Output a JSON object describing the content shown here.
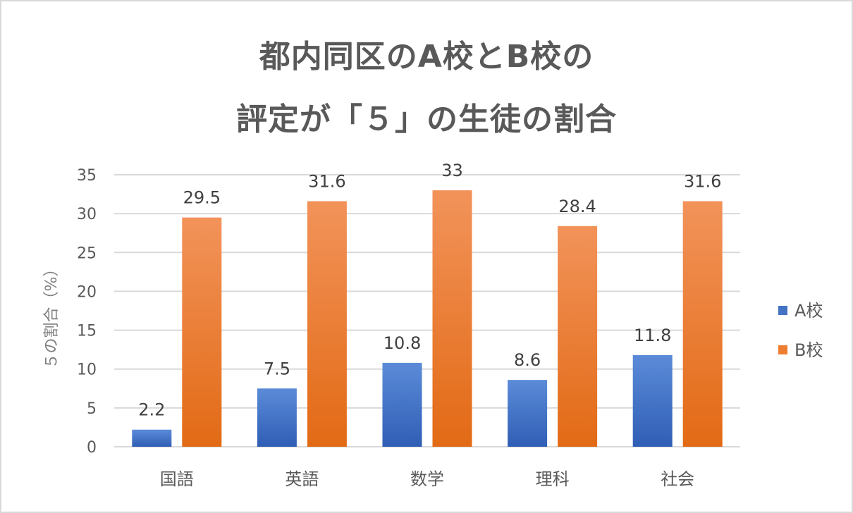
{
  "chart_data": {
    "type": "bar",
    "title_lines": [
      "都内同区のA校とB校の",
      "評定が「５」の生徒の割合"
    ],
    "ylabel": "５の割合（%）",
    "xlabel": "",
    "categories": [
      "国語",
      "英語",
      "数学",
      "理科",
      "社会"
    ],
    "series": [
      {
        "name": "A校",
        "values": [
          2.2,
          7.5,
          10.8,
          8.6,
          11.8
        ],
        "color": "#4472c4"
      },
      {
        "name": "B校",
        "values": [
          29.5,
          31.6,
          33,
          28.4,
          31.6
        ],
        "color": "#ed7d31"
      }
    ],
    "ylim": [
      0,
      35
    ],
    "yticks": [
      0,
      5,
      10,
      15,
      20,
      25,
      30,
      35
    ],
    "grid": true,
    "legend": "right",
    "data_labels": true
  }
}
